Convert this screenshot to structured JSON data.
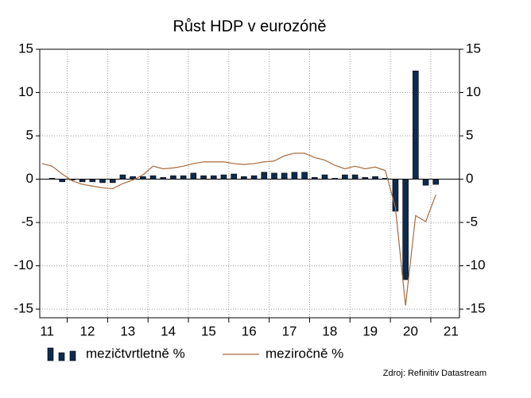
{
  "chart_data": {
    "type": "bar_line",
    "title": "Růst HDP v eurozóně",
    "source": "Zdroj: Refinitiv Datastream",
    "x": [
      2011.375,
      2011.625,
      2011.875,
      2012.125,
      2012.375,
      2012.625,
      2012.875,
      2013.125,
      2013.375,
      2013.625,
      2013.875,
      2014.125,
      2014.375,
      2014.625,
      2014.875,
      2015.125,
      2015.375,
      2015.625,
      2015.875,
      2016.125,
      2016.375,
      2016.625,
      2016.875,
      2017.125,
      2017.375,
      2017.625,
      2017.875,
      2018.125,
      2018.375,
      2018.625,
      2018.875,
      2019.125,
      2019.375,
      2019.625,
      2019.875,
      2020.125,
      2020.375,
      2020.625,
      2020.875,
      2021.125
    ],
    "series": [
      {
        "name": "mezičtvrtletně %",
        "kind": "bar",
        "color": "#0d2b4e",
        "values": [
          null,
          0.1,
          -0.3,
          -0.1,
          -0.3,
          -0.3,
          -0.4,
          -0.4,
          0.5,
          0.3,
          0.3,
          0.4,
          0.2,
          0.4,
          0.4,
          0.7,
          0.4,
          0.4,
          0.5,
          0.6,
          0.3,
          0.4,
          0.8,
          0.7,
          0.7,
          0.8,
          0.8,
          0.2,
          0.5,
          0.1,
          0.5,
          0.5,
          0.2,
          0.3,
          0.1,
          -3.7,
          -11.6,
          12.5,
          -0.7,
          -0.6
        ]
      },
      {
        "name": "meziročně %",
        "kind": "line",
        "color": "#a86b3d",
        "values": [
          1.8,
          1.5,
          0.6,
          -0.2,
          -0.6,
          -0.8,
          -1.0,
          -1.1,
          -0.5,
          -0.1,
          0.5,
          1.5,
          1.2,
          1.3,
          1.5,
          1.8,
          2.0,
          2.0,
          2.0,
          1.8,
          1.7,
          1.8,
          2.0,
          2.1,
          2.7,
          3.0,
          3.0,
          2.5,
          2.2,
          1.6,
          1.2,
          1.5,
          1.2,
          1.4,
          1.0,
          -3.3,
          -14.6,
          -4.2,
          -4.9,
          -1.8
        ]
      }
    ],
    "xlim": [
      2011.32,
      2021.71
    ],
    "xticks": [
      {
        "value": 2011.5,
        "label": "11"
      },
      {
        "value": 2012.5,
        "label": "12"
      },
      {
        "value": 2013.5,
        "label": "13"
      },
      {
        "value": 2014.5,
        "label": "14"
      },
      {
        "value": 2015.5,
        "label": "15"
      },
      {
        "value": 2016.5,
        "label": "16"
      },
      {
        "value": 2017.5,
        "label": "17"
      },
      {
        "value": 2018.5,
        "label": "18"
      },
      {
        "value": 2019.5,
        "label": "19"
      },
      {
        "value": 2020.5,
        "label": "20"
      },
      {
        "value": 2021.5,
        "label": "21"
      }
    ],
    "ylim": [
      -16,
      15
    ],
    "yticks": [
      15,
      10,
      5,
      0,
      -5,
      -10,
      -15
    ],
    "grid": true
  }
}
